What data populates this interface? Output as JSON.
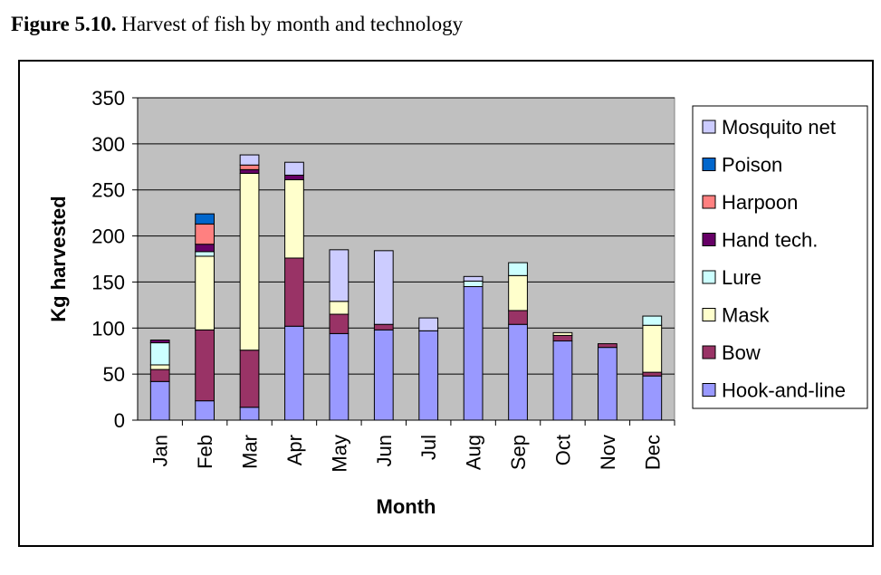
{
  "figure": {
    "label": "Figure 5.10.",
    "caption": "Harvest of fish by month and technology"
  },
  "chart_data": {
    "type": "bar",
    "stacked": true,
    "xlabel": "Month",
    "ylabel": "Kg harvested",
    "ylim": [
      0,
      350
    ],
    "yticks": [
      0,
      50,
      100,
      150,
      200,
      250,
      300,
      350
    ],
    "grid": true,
    "legend_position": "right",
    "categories": [
      "Jan",
      "Feb",
      "Mar",
      "Apr",
      "May",
      "Jun",
      "Jul",
      "Aug",
      "Sep",
      "Oct",
      "Nov",
      "Dec"
    ],
    "series": [
      {
        "name": "Hook-and-line",
        "color": "#9999ff",
        "values": [
          42,
          21,
          14,
          102,
          94,
          98,
          97,
          145,
          104,
          86,
          79,
          48
        ]
      },
      {
        "name": "Bow",
        "color": "#993366",
        "values": [
          13,
          77,
          62,
          74,
          21,
          6,
          0,
          0,
          15,
          6,
          4,
          4
        ]
      },
      {
        "name": "Mask",
        "color": "#ffffcc",
        "values": [
          5,
          80,
          192,
          85,
          14,
          0,
          0,
          0,
          38,
          3,
          0,
          51
        ]
      },
      {
        "name": "Lure",
        "color": "#ccffff",
        "values": [
          24,
          5,
          0,
          0,
          0,
          0,
          0,
          6,
          14,
          0,
          0,
          10
        ]
      },
      {
        "name": "Hand tech.",
        "color": "#660066",
        "values": [
          3,
          8,
          4,
          5,
          0,
          0,
          0,
          0,
          0,
          0,
          0,
          0
        ]
      },
      {
        "name": "Harpoon",
        "color": "#ff8080",
        "values": [
          0,
          22,
          5,
          0,
          0,
          0,
          0,
          0,
          0,
          0,
          0,
          0
        ]
      },
      {
        "name": "Poison",
        "color": "#0066cc",
        "values": [
          0,
          11,
          0,
          0,
          0,
          0,
          0,
          0,
          0,
          0,
          0,
          0
        ]
      },
      {
        "name": "Mosquito net",
        "color": "#ccccff",
        "values": [
          0,
          0,
          11,
          14,
          56,
          80,
          14,
          5,
          0,
          0,
          0,
          0
        ]
      }
    ]
  },
  "style": {
    "plot_background": "#c0c0c0",
    "bar_edge": "#000000"
  }
}
